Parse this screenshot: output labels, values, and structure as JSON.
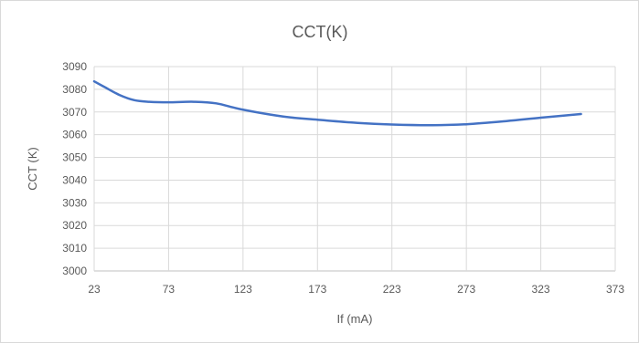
{
  "chart_data": {
    "type": "line",
    "title": "CCT(K)",
    "xlabel": "If (mA)",
    "ylabel": "CCT (K)",
    "xlim": [
      23,
      373
    ],
    "ylim": [
      3000,
      3090
    ],
    "x_ticks": [
      23,
      73,
      123,
      173,
      223,
      273,
      323,
      373
    ],
    "y_ticks": [
      3000,
      3010,
      3020,
      3030,
      3040,
      3050,
      3060,
      3070,
      3080,
      3090
    ],
    "grid": true,
    "legend": "none",
    "series": [
      {
        "color": "#4472c4",
        "x": [
          23,
          30,
          40,
          50,
          60,
          73,
          90,
          105,
          123,
          150,
          173,
          200,
          223,
          250,
          273,
          300,
          323,
          350
        ],
        "y": [
          3083.5,
          3081,
          3077.5,
          3075.2,
          3074.5,
          3074.3,
          3074.5,
          3073.8,
          3071.0,
          3068.0,
          3066.6,
          3065.2,
          3064.5,
          3064.2,
          3064.6,
          3066.0,
          3067.5,
          3069.1
        ]
      }
    ]
  }
}
